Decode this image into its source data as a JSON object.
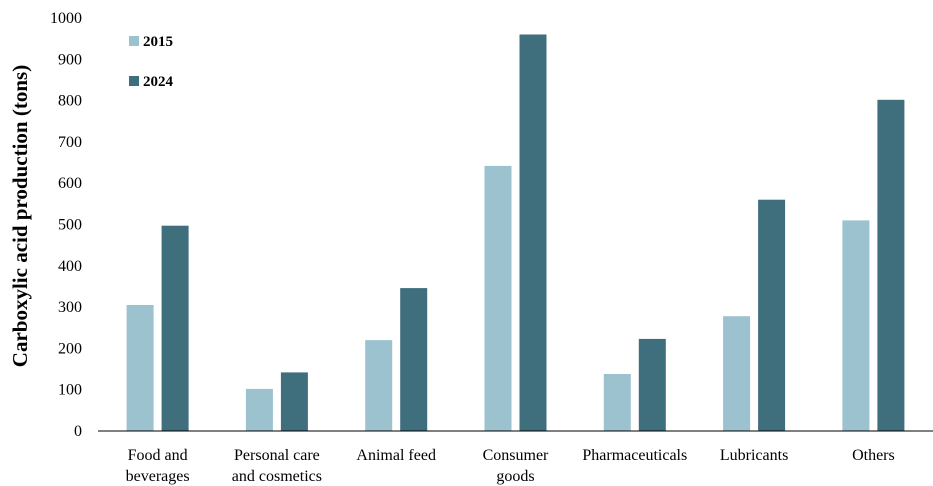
{
  "chart_data": {
    "type": "bar",
    "title": "",
    "xlabel": "",
    "ylabel": "Carboxylic acid production (tons)",
    "ylim": [
      0,
      1000
    ],
    "yticks": [
      "0",
      "100",
      "200",
      "300",
      "400",
      "500",
      "600",
      "700",
      "800",
      "900",
      "1000"
    ],
    "categories": [
      [
        "Food and",
        "beverages"
      ],
      [
        "Personal care",
        "and cosmetics"
      ],
      [
        "Animal feed"
      ],
      [
        "Consumer",
        "goods"
      ],
      [
        "Pharmaceuticals"
      ],
      [
        "Lubricants"
      ],
      [
        "Others"
      ]
    ],
    "series": [
      {
        "name": "2015",
        "color": "#9cc1cf",
        "values": [
          305,
          102,
          220,
          642,
          138,
          278,
          510
        ]
      },
      {
        "name": "2024",
        "color": "#3f6e7d",
        "values": [
          497,
          142,
          346,
          960,
          223,
          560,
          802
        ]
      }
    ],
    "legend_position": "top-left",
    "grid": false
  }
}
